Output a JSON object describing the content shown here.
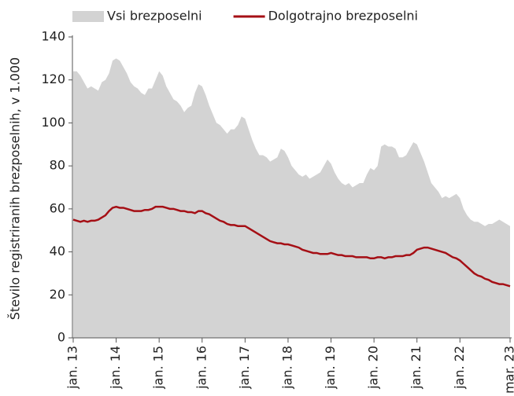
{
  "chart_data": {
    "type": "area-line",
    "y_label": "Število registriranih brezposelnih, v 1.000",
    "categories": [
      "jan. 13",
      null,
      null,
      null,
      null,
      null,
      null,
      null,
      null,
      null,
      null,
      null,
      "jan. 14",
      null,
      null,
      null,
      null,
      null,
      null,
      null,
      null,
      null,
      null,
      null,
      "jan. 15",
      null,
      null,
      null,
      null,
      null,
      null,
      null,
      null,
      null,
      null,
      null,
      "jan. 16",
      null,
      null,
      null,
      null,
      null,
      null,
      null,
      null,
      null,
      null,
      null,
      "jan. 17",
      null,
      null,
      null,
      null,
      null,
      null,
      null,
      null,
      null,
      null,
      null,
      "jan. 18",
      null,
      null,
      null,
      null,
      null,
      null,
      null,
      null,
      null,
      null,
      null,
      "jan. 19",
      null,
      null,
      null,
      null,
      null,
      null,
      null,
      null,
      null,
      null,
      null,
      "jan. 20",
      null,
      null,
      null,
      null,
      null,
      null,
      null,
      null,
      null,
      null,
      null,
      "jan. 21",
      null,
      null,
      null,
      null,
      null,
      null,
      null,
      null,
      null,
      null,
      null,
      "jan. 22",
      null,
      null,
      null,
      null,
      null,
      null,
      null,
      null,
      null,
      null,
      null,
      null,
      null,
      "mar. 23"
    ],
    "series": [
      {
        "name": "Vsi brezposelni",
        "kind": "area",
        "color": "#d3d3d3",
        "values": [
          124,
          124,
          122,
          119,
          116,
          117,
          116,
          115,
          119,
          120,
          123,
          129,
          130,
          129,
          126,
          123,
          119,
          117,
          116,
          114,
          113,
          116,
          116,
          120,
          124,
          122,
          117,
          114,
          111,
          110,
          108,
          105,
          107,
          108,
          114,
          118,
          117,
          113,
          108,
          104,
          100,
          99,
          97,
          95,
          97,
          97,
          99,
          103,
          102,
          97,
          92,
          88,
          85,
          85,
          84,
          82,
          83,
          84,
          88,
          87,
          84,
          80,
          78,
          76,
          75,
          76,
          74,
          75,
          76,
          77,
          80,
          83,
          81,
          77,
          74,
          72,
          71,
          72,
          70,
          71,
          72,
          72,
          76,
          79,
          78,
          80,
          89,
          90,
          89,
          89,
          88,
          84,
          84,
          85,
          88,
          91,
          90,
          86,
          82,
          77,
          72,
          70,
          68,
          65,
          66,
          65,
          66,
          67,
          65,
          60,
          57,
          55,
          54,
          54,
          53,
          52,
          53,
          53,
          54,
          55,
          54,
          53,
          52
        ]
      },
      {
        "name": "Dolgotrajno brezposelni",
        "kind": "line",
        "color": "#a50f15",
        "values": [
          55,
          54.5,
          54,
          54.5,
          54,
          54.5,
          54.5,
          55,
          56,
          57,
          59,
          60.5,
          61,
          60.5,
          60.5,
          60,
          59.5,
          59,
          59,
          59,
          59.5,
          59.5,
          60,
          61,
          61,
          61,
          60.5,
          60,
          60,
          59.5,
          59,
          59,
          58.5,
          58.5,
          58,
          59,
          59,
          58,
          57.5,
          56.5,
          55.5,
          54.5,
          54,
          53,
          52.5,
          52.5,
          52,
          52,
          52,
          51,
          50,
          49,
          48,
          47,
          46,
          45,
          44.5,
          44,
          44,
          43.5,
          43.5,
          43,
          42.5,
          42,
          41,
          40.5,
          40,
          39.5,
          39.5,
          39,
          39,
          39,
          39.5,
          39,
          38.5,
          38.5,
          38,
          38,
          38,
          37.5,
          37.5,
          37.5,
          37.5,
          37,
          37,
          37.5,
          37.5,
          37,
          37.5,
          37.5,
          38,
          38,
          38,
          38.5,
          38.5,
          39.5,
          41,
          41.5,
          42,
          42,
          41.5,
          41,
          40.5,
          40,
          39.5,
          38.5,
          37.5,
          37,
          36,
          34.5,
          33,
          31.5,
          30,
          29,
          28.5,
          27.5,
          27,
          26,
          25.5,
          25,
          25,
          24.5,
          24
        ]
      }
    ],
    "ylim": [
      0,
      140
    ],
    "yticks": [
      0,
      20,
      40,
      60,
      80,
      100,
      120,
      140
    ],
    "grid": false
  }
}
